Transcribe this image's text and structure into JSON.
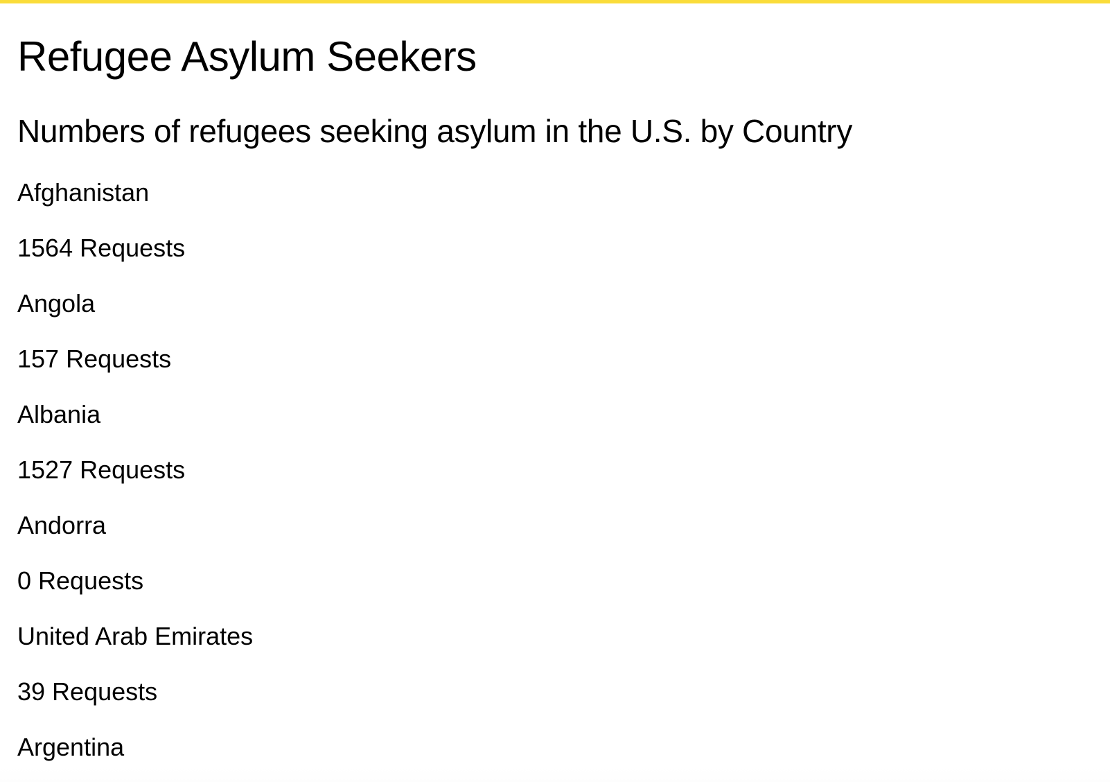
{
  "header": {
    "title": "Refugee Asylum Seekers",
    "subtitle": "Numbers of refugees seeking asylum in the U.S. by Country"
  },
  "countries": [
    {
      "name": "Afghanistan",
      "requests": "1564 Requests"
    },
    {
      "name": "Angola",
      "requests": "157 Requests"
    },
    {
      "name": "Albania",
      "requests": "1527 Requests"
    },
    {
      "name": "Andorra",
      "requests": "0 Requests"
    },
    {
      "name": "United Arab Emirates",
      "requests": "39 Requests"
    },
    {
      "name": "Argentina",
      "requests": ""
    }
  ],
  "colors": {
    "accent": "#fadc3a",
    "background": "#ffffff",
    "text": "#000000"
  }
}
